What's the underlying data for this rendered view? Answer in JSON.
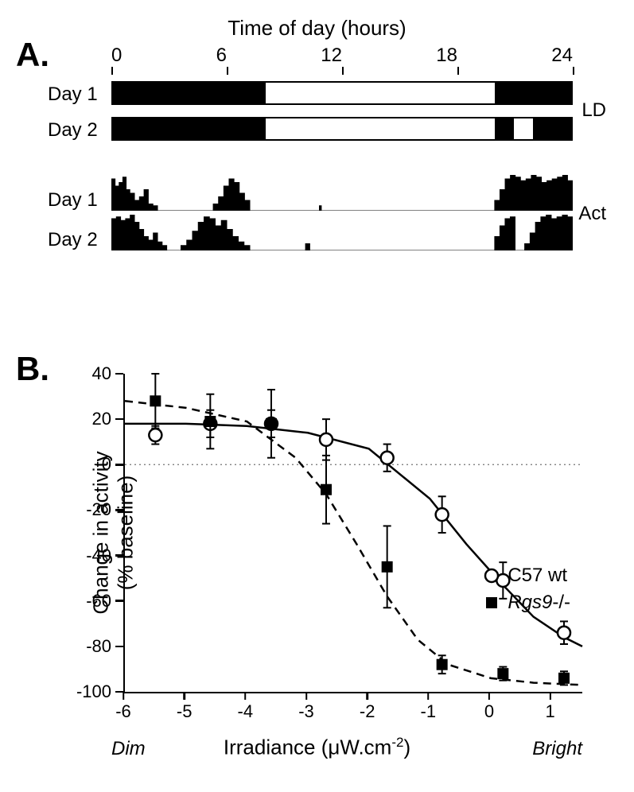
{
  "panelA": {
    "label": "A.",
    "axis_title": "Time of day (hours)",
    "ticks": [
      "0",
      "6",
      "12",
      "18",
      "24"
    ],
    "rows": [
      "Day 1",
      "Day 2"
    ],
    "side_labels": {
      "LD": "LD",
      "Act": "Act"
    },
    "ld_schedule": {
      "day1": [
        {
          "type": "dark",
          "frac": 0.333
        },
        {
          "type": "light",
          "frac": 0.5
        },
        {
          "type": "dark",
          "frac": 0.167
        }
      ],
      "day2": [
        {
          "type": "dark",
          "frac": 0.333
        },
        {
          "type": "light",
          "frac": 0.5
        },
        {
          "type": "dark",
          "frac": 0.042
        },
        {
          "type": "light",
          "frac": 0.042
        },
        {
          "type": "dark",
          "frac": 0.083
        }
      ]
    },
    "actogram": {
      "max_height": 1.0,
      "bar_color": "#000000",
      "day1": [
        {
          "start": 0.0,
          "end": 0.04,
          "heights": [
            0.9,
            0.7,
            0.8,
            0.95,
            0.6
          ]
        },
        {
          "start": 0.04,
          "end": 0.1,
          "heights": [
            0.5,
            0.3,
            0.4,
            0.6,
            0.2,
            0.15
          ]
        },
        {
          "start": 0.22,
          "end": 0.3,
          "heights": [
            0.2,
            0.4,
            0.7,
            0.9,
            0.8,
            0.5,
            0.3
          ]
        },
        {
          "start": 0.45,
          "end": 0.455,
          "heights": [
            0.15
          ]
        },
        {
          "start": 0.83,
          "end": 1.0,
          "heights": [
            0.3,
            0.6,
            0.9,
            1.0,
            0.95,
            0.85,
            0.9,
            1.0,
            0.95,
            0.8,
            0.85,
            0.9,
            0.95,
            1.0,
            0.85
          ]
        }
      ],
      "day2": [
        {
          "start": 0.0,
          "end": 0.06,
          "heights": [
            0.9,
            0.95,
            0.85,
            0.9,
            1.0,
            0.8
          ]
        },
        {
          "start": 0.06,
          "end": 0.12,
          "heights": [
            0.6,
            0.4,
            0.3,
            0.5,
            0.25,
            0.15
          ]
        },
        {
          "start": 0.15,
          "end": 0.3,
          "heights": [
            0.15,
            0.3,
            0.55,
            0.8,
            0.95,
            0.9,
            0.7,
            0.85,
            0.6,
            0.4,
            0.25,
            0.15
          ]
        },
        {
          "start": 0.42,
          "end": 0.43,
          "heights": [
            0.2
          ]
        },
        {
          "start": 0.83,
          "end": 0.875,
          "heights": [
            0.4,
            0.7,
            0.9,
            0.95
          ]
        },
        {
          "start": 0.895,
          "end": 1.0,
          "heights": [
            0.2,
            0.5,
            0.8,
            0.95,
            1.0,
            0.9,
            0.95,
            1.0,
            0.95
          ]
        }
      ]
    },
    "style": {
      "background_color": "#ffffff",
      "bar_border": "#000000",
      "font_size_ticks": 24,
      "font_size_labels": 24,
      "font_size_title": 26
    }
  },
  "panelB": {
    "label": "B.",
    "y_label_line1": "Change in activity",
    "y_label_line2": "(% baseline)",
    "x_label": "Irradiance (μW.cm",
    "x_label_sup": "-2",
    "x_label_close": ")",
    "x_end_dim": "Dim",
    "x_end_bright": "Bright",
    "xlim": [
      -6,
      1.5
    ],
    "ylim": [
      -100,
      40
    ],
    "x_ticks": [
      -6,
      -5,
      -4,
      -3,
      -2,
      -1,
      0,
      1
    ],
    "y_ticks": [
      40,
      20,
      0,
      -20,
      -40,
      -60,
      -80,
      -100
    ],
    "zero_line": true,
    "series": [
      {
        "name": "C57 wt",
        "marker": "open-circle",
        "line_style": "solid",
        "color": "#000000",
        "marker_size": 16,
        "line_width": 2.5,
        "points": [
          {
            "x": -5.5,
            "y": 13,
            "err": 4
          },
          {
            "x": -4.6,
            "y": 18,
            "err": 6
          },
          {
            "x": -3.6,
            "y": 18,
            "err": 15
          },
          {
            "x": -2.7,
            "y": 11,
            "err": 9
          },
          {
            "x": -1.7,
            "y": 3,
            "err": 6
          },
          {
            "x": -0.8,
            "y": -22,
            "err": 8
          },
          {
            "x": 0.2,
            "y": -51,
            "err": 8
          },
          {
            "x": 1.2,
            "y": -74,
            "err": 5
          }
        ],
        "curve": [
          {
            "x": -6.0,
            "y": 18
          },
          {
            "x": -5.0,
            "y": 18
          },
          {
            "x": -4.0,
            "y": 17
          },
          {
            "x": -3.0,
            "y": 14
          },
          {
            "x": -2.0,
            "y": 7
          },
          {
            "x": -1.0,
            "y": -15
          },
          {
            "x": -0.4,
            "y": -35
          },
          {
            "x": 0.2,
            "y": -53
          },
          {
            "x": 0.7,
            "y": -67
          },
          {
            "x": 1.2,
            "y": -76
          },
          {
            "x": 1.5,
            "y": -80
          }
        ]
      },
      {
        "name": "Rgs9-/-",
        "marker": "filled-square",
        "line_style": "dashed",
        "color": "#000000",
        "marker_size": 14,
        "line_width": 2.5,
        "points": [
          {
            "x": -5.5,
            "y": 28,
            "err": 12
          },
          {
            "x": -4.6,
            "y": 19,
            "err": 12
          },
          {
            "x": -3.6,
            "y": 18,
            "err": 6
          },
          {
            "x": -2.7,
            "y": -11,
            "err": 15
          },
          {
            "x": -1.7,
            "y": -45,
            "err": 18
          },
          {
            "x": -0.8,
            "y": -88,
            "err": 4
          },
          {
            "x": 0.2,
            "y": -92,
            "err": 3
          },
          {
            "x": 1.2,
            "y": -94,
            "err": 3
          }
        ],
        "curve": [
          {
            "x": -6.0,
            "y": 28
          },
          {
            "x": -5.0,
            "y": 25
          },
          {
            "x": -4.0,
            "y": 19
          },
          {
            "x": -3.2,
            "y": 3
          },
          {
            "x": -2.7,
            "y": -13
          },
          {
            "x": -2.2,
            "y": -35
          },
          {
            "x": -1.7,
            "y": -58
          },
          {
            "x": -1.2,
            "y": -77
          },
          {
            "x": -0.7,
            "y": -88
          },
          {
            "x": 0.0,
            "y": -94
          },
          {
            "x": 0.7,
            "y": -96
          },
          {
            "x": 1.5,
            "y": -97
          }
        ]
      }
    ],
    "legend": [
      {
        "marker": "open-circle",
        "label": "C57 wt"
      },
      {
        "marker": "filled-square",
        "label_italic": "Rgs9",
        "label_rest": "-/-"
      }
    ],
    "style": {
      "background_color": "#ffffff",
      "axis_color": "#000000",
      "grid_color": "none",
      "font_size_ticks": 22,
      "font_size_labels": 26,
      "zero_line_color": "#000000",
      "zero_line_dash": "2,4"
    }
  }
}
